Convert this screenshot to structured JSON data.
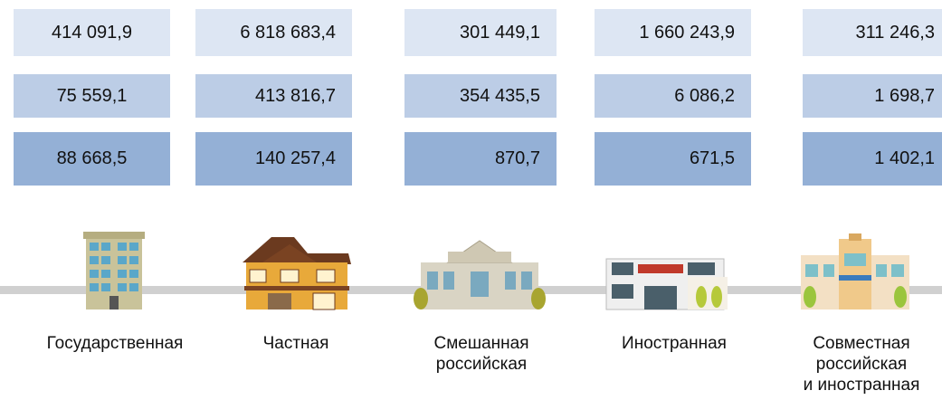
{
  "table": {
    "rows": [
      [
        "414 091,9",
        "6 818 683,4",
        "301 449,1",
        "1 660 243,9",
        "311 246,3"
      ],
      [
        "75 559,1",
        "413 816,7",
        "354 435,5",
        "6 086,2",
        "1 698,7"
      ],
      [
        "88 668,5",
        "140 257,4",
        "870,7",
        "671,5",
        "1 402,1"
      ]
    ]
  },
  "labels": [
    [
      "Государственная"
    ],
    [
      "Частная"
    ],
    [
      "Смешанная",
      "российская"
    ],
    [
      "Иностранная"
    ],
    [
      "Совместная",
      "российская",
      "и иностранная"
    ]
  ]
}
